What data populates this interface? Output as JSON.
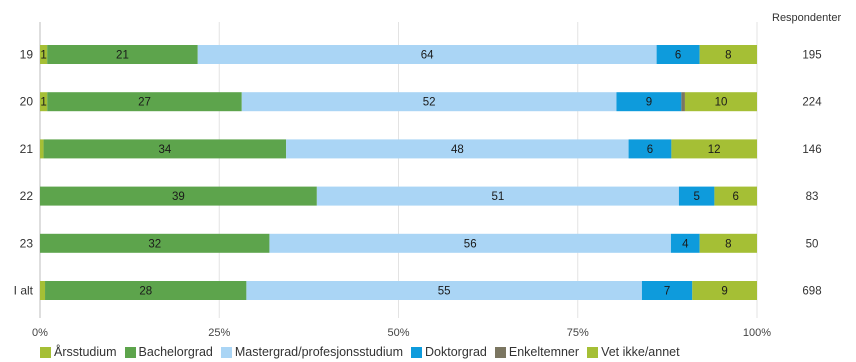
{
  "chart_data": {
    "type": "bar",
    "orientation": "horizontal",
    "stacked": true,
    "categories": [
      "19",
      "20",
      "21",
      "22",
      "23",
      "I alt"
    ],
    "series": [
      {
        "name": "Årsstudium",
        "color": "#a5bf35",
        "values": [
          1,
          1,
          0.5,
          0,
          0,
          0.7
        ],
        "labels": [
          "1",
          "1",
          "",
          "",
          "",
          ""
        ]
      },
      {
        "name": "Bachelorgrad",
        "color": "#5da44c",
        "values": [
          21,
          27,
          34,
          39,
          32,
          28
        ],
        "labels": [
          "21",
          "27",
          "34",
          "39",
          "32",
          "28"
        ]
      },
      {
        "name": "Mastergrad/profesjonsstudium",
        "color": "#aad5f5",
        "values": [
          64,
          52,
          48,
          51,
          56,
          55
        ],
        "labels": [
          "64",
          "52",
          "48",
          "51",
          "56",
          "55"
        ]
      },
      {
        "name": "Doktorgrad",
        "color": "#0e9bdc",
        "values": [
          6,
          9,
          6,
          5,
          4,
          7
        ],
        "labels": [
          "6",
          "9",
          "6",
          "5",
          "4",
          "7"
        ]
      },
      {
        "name": "Enkeltemner",
        "color": "#7b7661",
        "values": [
          0,
          0.5,
          0,
          0,
          0,
          0
        ],
        "labels": [
          "",
          "",
          "",
          "",
          "",
          ""
        ]
      },
      {
        "name": "Vet ikke/annet",
        "color": "#a5bf35",
        "values": [
          8,
          10,
          12,
          6,
          8,
          9
        ],
        "labels": [
          "8",
          "10",
          "12",
          "6",
          "8",
          "9"
        ]
      }
    ],
    "respondents_header": "Respondenter",
    "respondents": [
      "195",
      "224",
      "146",
      "83",
      "50",
      "698"
    ],
    "x_ticks": [
      "0%",
      "25%",
      "50%",
      "75%",
      "100%"
    ],
    "xlim": [
      0,
      100
    ],
    "grid": true,
    "legend_position": "bottom"
  }
}
